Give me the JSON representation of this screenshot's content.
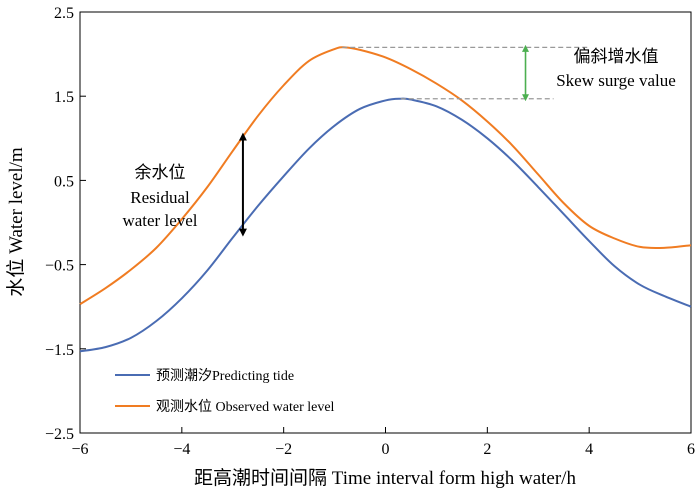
{
  "chart_data": {
    "type": "line",
    "xlabel": "距高潮时间间隔 Time interval form high water/h",
    "ylabel": "水位 Water level/m",
    "xlim": [
      -6,
      6
    ],
    "ylim": [
      -2.5,
      2.5
    ],
    "xticks": [
      -6,
      -4,
      -2,
      0,
      2,
      4,
      6
    ],
    "yticks": [
      -2.5,
      -1.5,
      -0.5,
      0.5,
      1.5,
      2.5
    ],
    "xtick_labels": [
      "−6",
      "−4",
      "−2",
      "0",
      "2",
      "4",
      "6"
    ],
    "ytick_labels": [
      "−2.5",
      "−1.5",
      "−0.5",
      "0.5",
      "1.5",
      "2.5"
    ],
    "legend_position": "bottom-left",
    "series": [
      {
        "name": "预测潮汐Predicting tide",
        "color": "#4a6cb3",
        "x": [
          -6,
          -5.5,
          -5,
          -4.5,
          -4,
          -3.5,
          -3,
          -2.5,
          -2,
          -1.5,
          -1,
          -0.5,
          0,
          0.3,
          0.5,
          1,
          1.5,
          2,
          2.5,
          3,
          3.5,
          4,
          4.5,
          5,
          5.5,
          6
        ],
        "y": [
          -1.53,
          -1.48,
          -1.37,
          -1.17,
          -0.9,
          -0.57,
          -0.18,
          0.2,
          0.55,
          0.88,
          1.15,
          1.35,
          1.45,
          1.47,
          1.46,
          1.38,
          1.22,
          1.0,
          0.73,
          0.42,
          0.1,
          -0.22,
          -0.52,
          -0.74,
          -0.88,
          -1.0
        ]
      },
      {
        "name": "观测水位 Observed water level",
        "color": "#f07c22",
        "x": [
          -6,
          -5.5,
          -5,
          -4.5,
          -4,
          -3.5,
          -3,
          -2.5,
          -2,
          -1.5,
          -1,
          -0.8,
          -0.5,
          0,
          0.5,
          1,
          1.5,
          2,
          2.5,
          3,
          3.5,
          4,
          4.5,
          5,
          5.5,
          6
        ],
        "y": [
          -0.97,
          -0.78,
          -0.56,
          -0.3,
          0.04,
          0.42,
          0.85,
          1.27,
          1.63,
          1.92,
          2.06,
          2.08,
          2.05,
          1.96,
          1.82,
          1.65,
          1.45,
          1.2,
          0.91,
          0.57,
          0.23,
          -0.04,
          -0.19,
          -0.29,
          -0.3,
          -0.27
        ]
      }
    ],
    "annotations": [
      {
        "name": "residual-water-level",
        "text_cn": "余水位",
        "text_en_1": "Residual",
        "text_en_2": "water level",
        "x": -2.8,
        "y_from": -0.12,
        "y_to": 1.02,
        "color": "#000000"
      },
      {
        "name": "skew-surge",
        "text_cn": "偏斜增水值",
        "text_en": "Skew surge value",
        "x": 2.75,
        "y_from": 1.47,
        "y_to": 2.08,
        "color": "#4caf50",
        "guide_color": "#999999"
      }
    ]
  }
}
